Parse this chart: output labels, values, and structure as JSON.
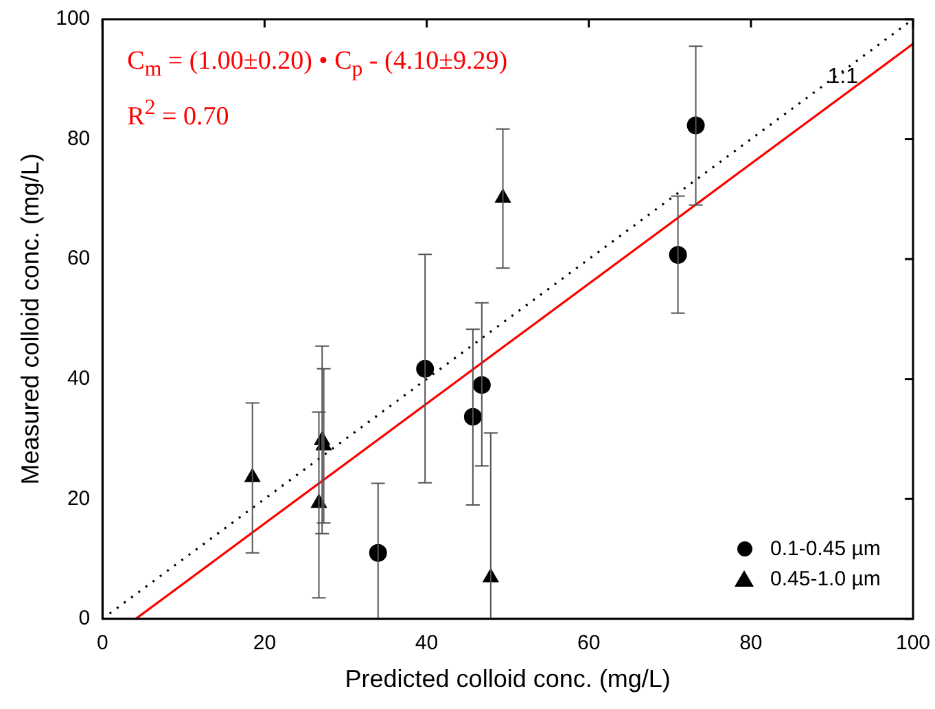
{
  "chart_data": {
    "type": "scatter",
    "xlabel": "Predicted colloid conc. (mg/L)",
    "ylabel": "Measured colloid conc. (mg/L)",
    "xlim": [
      0,
      100
    ],
    "ylim": [
      0,
      100
    ],
    "xticks": [
      0,
      20,
      40,
      60,
      80,
      100
    ],
    "yticks": [
      0,
      20,
      40,
      60,
      80,
      100
    ],
    "grid": false,
    "legend": "bottom right",
    "annotations": [
      "C$_{m}$ = (1.00±0.20) • C$_{p}$ - (4.10±9.29)",
      "R$^{2}$ = 0.70"
    ],
    "series": [
      {
        "name": "0.1-0.45 µm",
        "color": "#000000",
        "marker": "circle",
        "x": [
          73.2,
          71,
          39.8,
          45.7,
          46.8,
          34
        ],
        "values": [
          82.3,
          60.7,
          41.7,
          33.7,
          39,
          11
        ],
        "errors": [
          [
            69,
            95.5
          ],
          [
            51,
            70.5
          ],
          [
            22.7,
            60.8
          ],
          [
            19,
            48.3
          ],
          [
            25.5,
            52.7
          ],
          [
            0,
            22.6
          ]
        ]
      },
      {
        "name": "0.45-1.0 µm",
        "color": "#000000",
        "marker": "triangle",
        "x": [
          18.5,
          26.7,
          27.1,
          27.3,
          49.4,
          47.9
        ],
        "values": [
          23.6,
          19.3,
          29.8,
          28.9,
          70.2,
          6.9
        ],
        "errors": [
          [
            11,
            36
          ],
          [
            3.5,
            34.5
          ],
          [
            14.2,
            45.5
          ],
          [
            16,
            41.7
          ],
          [
            58.5,
            81.7
          ],
          [
            0,
            31
          ]
        ]
      },
      {
        "type": "line",
        "name": "1:1",
        "color": "#000000",
        "line_style": "dotted",
        "marker": "none",
        "x": [
          0,
          100
        ],
        "values": [
          0,
          100
        ]
      },
      {
        "type": "line",
        "color": "#ff0000",
        "line_style": "solid",
        "marker": "none",
        "x": [
          4.1,
          100
        ],
        "values": [
          0,
          95.9
        ]
      }
    ]
  }
}
